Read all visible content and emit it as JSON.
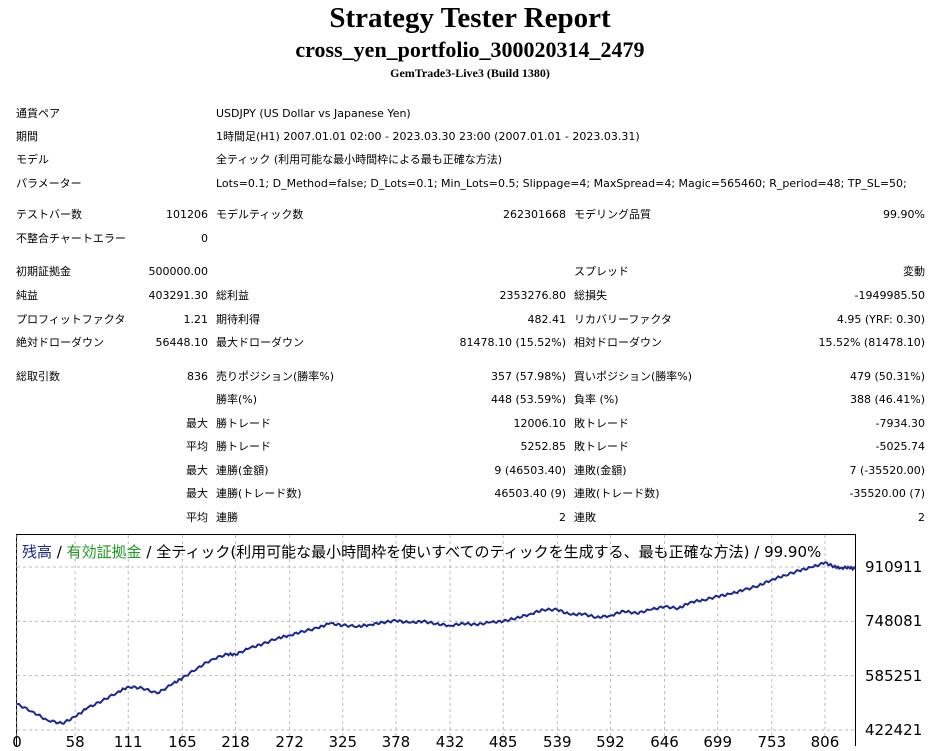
{
  "report": {
    "title": "Strategy Tester Report",
    "subtitle": "cross_yen_portfolio_300020314_2479",
    "server": "GemTrade3-Live3 (Build 1380)"
  },
  "info": {
    "symbol_label": "通貨ペア",
    "symbol_value": "USDJPY (US Dollar vs Japanese Yen)",
    "period_label": "期間",
    "period_value": "1時間足(H1) 2007.01.01 02:00 - 2023.03.30 23:00 (2007.01.01 - 2023.03.31)",
    "model_label": "モデル",
    "model_value": "全ティック (利用可能な最小時間枠による最も正確な方法)",
    "params_label": "パラメーター",
    "params_value": "Lots=0.1; D_Method=false; D_Lots=0.1; Min_Lots=0.5; Slippage=4; MaxSpread=4; Magic=565460; R_period=48; TP_SL=50;"
  },
  "stats": {
    "bars_label": "テストバー数",
    "bars_value": "101206",
    "ticks_label": "モデルティック数",
    "ticks_value": "262301668",
    "quality_label": "モデリング品質",
    "quality_value": "99.90%",
    "mismatch_label": "不整合チャートエラー",
    "mismatch_value": "0",
    "deposit_label": "初期証拠金",
    "deposit_value": "500000.00",
    "spread_label": "スプレッド",
    "spread_value": "変動",
    "net_label": "純益",
    "net_value": "403291.30",
    "gross_profit_label": "総利益",
    "gross_profit_value": "2353276.80",
    "gross_loss_label": "総損失",
    "gross_loss_value": "-1949985.50",
    "pf_label": "プロフィットファクタ",
    "pf_value": "1.21",
    "expected_label": "期待利得",
    "expected_value": "482.41",
    "recovery_label": "リカバリーファクタ",
    "recovery_value": "4.95 (YRF: 0.30)",
    "abs_dd_label": "絶対ドローダウン",
    "abs_dd_value": "56448.10",
    "max_dd_label": "最大ドローダウン",
    "max_dd_value": "81478.10 (15.52%)",
    "rel_dd_label": "相対ドローダウン",
    "rel_dd_value": "15.52% (81478.10)",
    "trades_label": "総取引数",
    "trades_value": "836",
    "short_label": "売りポジション(勝率%)",
    "short_value": "357 (57.98%)",
    "long_label": "買いポジション(勝率%)",
    "long_value": "479 (50.31%)",
    "winrate_label": "勝率(%)",
    "winrate_value": "448 (53.59%)",
    "lossrate_label": "負率 (%)",
    "lossrate_value": "388 (46.41%)",
    "max_prefix": "最大",
    "avg_prefix": "平均",
    "largest_win_label": "勝トレード",
    "largest_win_value": "12006.10",
    "largest_loss_label": "敗トレード",
    "largest_loss_value": "-7934.30",
    "avg_win_label": "勝トレード",
    "avg_win_value": "5252.85",
    "avg_loss_label": "敗トレード",
    "avg_loss_value": "-5025.74",
    "cons_wins_money_label": "連勝(金額)",
    "cons_wins_money_value": "9 (46503.40)",
    "cons_loss_money_label": "連敗(金額)",
    "cons_loss_money_value": "7 (-35520.00)",
    "cons_wins_count_label": "連勝(トレード数)",
    "cons_wins_count_value": "46503.40 (9)",
    "cons_loss_count_label": "連敗(トレード数)",
    "cons_loss_count_value": "-35520.00 (7)",
    "avg_cons_wins_label": "連勝",
    "avg_cons_wins_value": "2",
    "avg_cons_loss_label": "連敗",
    "avg_cons_loss_value": "2"
  },
  "chart_data": {
    "type": "line",
    "legend": {
      "balance": "残高",
      "sep1": " / ",
      "equity": "有効証拠金",
      "rest": " / 全ティック(利用可能な最小時間枠を使いすべてのティックを生成する、最も正確な方法) / 99.90%"
    },
    "line_color": "#1a2a8c",
    "x_ticks": [
      "0",
      "58",
      "111",
      "165",
      "218",
      "272",
      "325",
      "378",
      "432",
      "485",
      "539",
      "592",
      "646",
      "699",
      "753",
      "806"
    ],
    "y_ticks": [
      "422421",
      "585251",
      "748081",
      "910911"
    ],
    "xlim": [
      0,
      836
    ],
    "ylim": [
      422421,
      910911
    ],
    "series": [
      {
        "x": [
          0,
          15,
          30,
          45,
          58,
          70,
          85,
          100,
          111,
          125,
          140,
          155,
          165,
          180,
          195,
          210,
          218,
          232,
          245,
          260,
          272,
          285,
          300,
          312,
          325,
          340,
          352,
          365,
          378,
          392,
          405,
          418,
          432,
          445,
          458,
          472,
          485,
          498,
          512,
          525,
          539,
          552,
          565,
          578,
          592,
          605,
          618,
          632,
          646,
          660,
          672,
          685,
          699,
          712,
          725,
          740,
          753,
          766,
          780,
          793,
          806,
          815,
          822,
          830,
          836
        ],
        "values": [
          500000,
          478000,
          452000,
          442000,
          462000,
          488000,
          510000,
          535000,
          552000,
          548000,
          532000,
          560000,
          578000,
          608000,
          635000,
          650000,
          648000,
          668000,
          680000,
          698000,
          706000,
          718000,
          728000,
          742000,
          736000,
          733000,
          738000,
          745000,
          750000,
          744000,
          748000,
          741000,
          735000,
          742000,
          738000,
          745000,
          748000,
          758000,
          770000,
          783000,
          783000,
          768000,
          770000,
          760000,
          765000,
          779000,
          772000,
          783000,
          792000,
          787000,
          806000,
          812000,
          823000,
          830000,
          842000,
          855000,
          873000,
          886000,
          900000,
          910000,
          924000,
          912000,
          908000,
          910000,
          905000
        ]
      }
    ]
  }
}
